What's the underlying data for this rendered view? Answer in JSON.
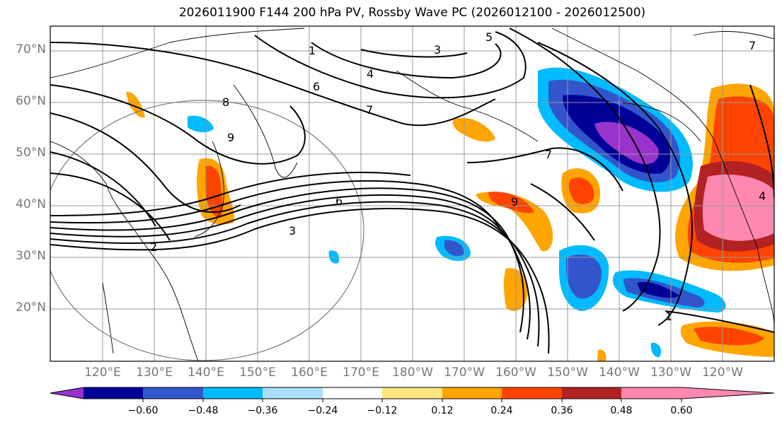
{
  "title": "2026011900 F144 200 hPa PV, Rossby Wave PC (2026012100 - 2026012500)",
  "latitude_labels": [
    "70°N",
    "60°N",
    "50°N",
    "40°N",
    "30°N",
    "20°N"
  ],
  "longitude_labels": [
    "120°E",
    "130°E",
    "140°E",
    "150°E",
    "160°E",
    "170°E",
    "180°W",
    "170°W",
    "160°W",
    "150°W",
    "140°W",
    "130°W",
    "120°W"
  ],
  "colorbar": {
    "tick_labels": [
      "−0.60",
      "−0.48",
      "−0.36",
      "−0.24",
      "−0.12",
      "0.12",
      "0.24",
      "0.36",
      "0.48",
      "0.60"
    ],
    "colors": [
      "#9933cc",
      "#000099",
      "#3355cc",
      "#00bbff",
      "#aaddff",
      "#ffffff",
      "#ffe680",
      "#ffa500",
      "#ff4400",
      "#b22222",
      "#ff88b0"
    ]
  },
  "contour_labels": [
    "1",
    "3",
    "5",
    "4",
    "6",
    "7",
    "8",
    "9",
    "7",
    "6",
    "9",
    "3",
    "4",
    "7",
    "1",
    "2"
  ]
}
